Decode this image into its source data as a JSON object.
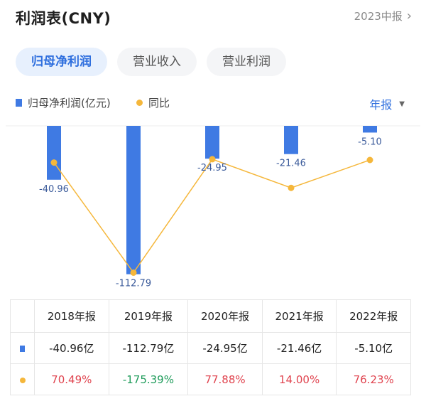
{
  "header": {
    "title": "利润表(CNY)",
    "period_link": "2023中报",
    "period_chevron": "›"
  },
  "tabs": [
    {
      "label": "归母净利润",
      "active": true
    },
    {
      "label": "营业收入",
      "active": false
    },
    {
      "label": "营业利润",
      "active": false
    }
  ],
  "legend": {
    "series1": "归母净利润(亿元)",
    "series2": "同比"
  },
  "period_select": {
    "label": "年报",
    "caret": "▼"
  },
  "colors": {
    "bar": "#3f7ae3",
    "line": "#f5b73b",
    "accent": "#2f6fde",
    "positive": "#e0444f",
    "negative": "#1e9b5a"
  },
  "chart_data": {
    "type": "bar",
    "categories": [
      "2018年报",
      "2019年报",
      "2020年报",
      "2021年报",
      "2022年报"
    ],
    "series": [
      {
        "name": "归母净利润(亿元)",
        "type": "bar",
        "values": [
          -40.96,
          -112.79,
          -24.95,
          -21.46,
          -5.1
        ],
        "labels": [
          "-40.96",
          "-112.79",
          "-24.95",
          "-21.46",
          "-5.10"
        ]
      },
      {
        "name": "同比",
        "type": "line",
        "values": [
          70.49,
          -175.39,
          77.88,
          14.0,
          76.23
        ]
      }
    ]
  },
  "table": {
    "headers": [
      "2018年报",
      "2019年报",
      "2020年报",
      "2021年报",
      "2022年报"
    ],
    "profit_row": [
      "-40.96亿",
      "-112.79亿",
      "-24.95亿",
      "-21.46亿",
      "-5.10亿"
    ],
    "yoy_row": [
      "70.49%",
      "-175.39%",
      "77.88%",
      "14.00%",
      "76.23%"
    ],
    "yoy_sign": [
      "pos",
      "neg",
      "pos",
      "pos",
      "pos"
    ]
  }
}
